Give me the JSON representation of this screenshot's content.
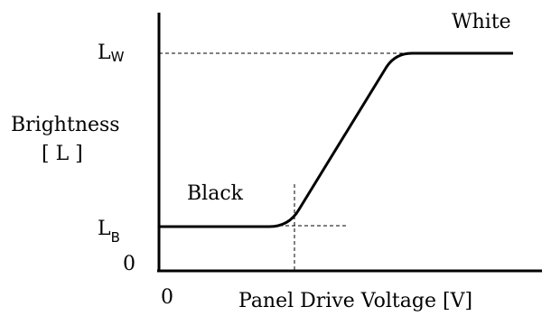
{
  "y_axis": {
    "label_line1": "Brightness",
    "label_line2": "[ L ]",
    "tick_lw_main": "L",
    "tick_lw_sub": "W",
    "tick_lb_main": "L",
    "tick_lb_sub": "B",
    "origin": "0"
  },
  "x_axis": {
    "origin": "0",
    "label": "Panel Drive Voltage [V]"
  },
  "annotations": {
    "white": "White",
    "black": "Black"
  },
  "colors": {
    "line": "#000000",
    "background": "#ffffff"
  }
}
